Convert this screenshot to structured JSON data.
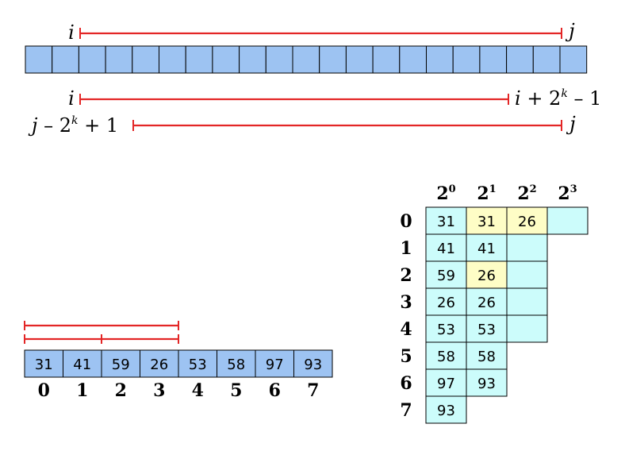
{
  "top_diagram": {
    "cell_count": 21,
    "range_full": {
      "left_label": "i",
      "right_label": "j"
    },
    "range_left": {
      "left_label": "i",
      "right_label_parts": [
        "i + 2",
        "k",
        " – 1"
      ]
    },
    "range_right": {
      "left_label_parts": [
        "j – 2",
        "k",
        " + 1"
      ],
      "right_label": "j"
    }
  },
  "bottom_array": {
    "values": [
      "31",
      "41",
      "59",
      "26",
      "53",
      "58",
      "97",
      "93"
    ],
    "indices": [
      "0",
      "1",
      "2",
      "3",
      "4",
      "5",
      "6",
      "7"
    ]
  },
  "sparse_table": {
    "column_headers": [
      {
        "base": "2",
        "exp": "0"
      },
      {
        "base": "2",
        "exp": "1"
      },
      {
        "base": "2",
        "exp": "2"
      },
      {
        "base": "2",
        "exp": "3"
      }
    ],
    "row_headers": [
      "0",
      "1",
      "2",
      "3",
      "4",
      "5",
      "6",
      "7"
    ],
    "rows": [
      [
        "31",
        "31",
        "26",
        ""
      ],
      [
        "41",
        "41",
        ""
      ],
      [
        "59",
        "26",
        ""
      ],
      [
        "26",
        "26",
        ""
      ],
      [
        "53",
        "53",
        ""
      ],
      [
        "58",
        "58"
      ],
      [
        "97",
        "93"
      ],
      [
        "93"
      ]
    ],
    "highlighted": [
      [
        0,
        1
      ],
      [
        0,
        2
      ],
      [
        2,
        1
      ]
    ]
  },
  "colors": {
    "array_fill": "#9dc3f2",
    "table_fill": "#ccfcfb",
    "highlight_fill": "#fefdc6",
    "range_line": "#e32626",
    "stroke": "#000000"
  }
}
